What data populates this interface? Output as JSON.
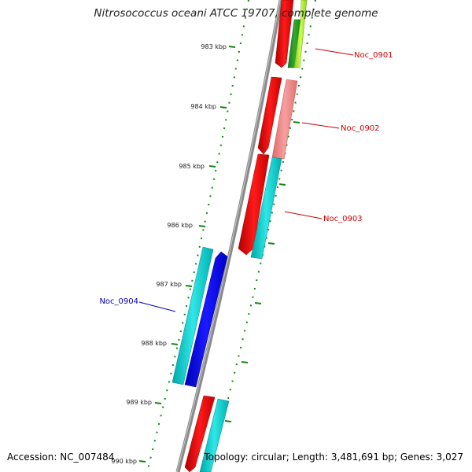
{
  "title": "Nitrosococcus oceani ATCC 19707, complete genome",
  "footer": {
    "accession": "Accession: NC_007484",
    "stats": "Topology: circular; Length: 3,481,691 bp; Genes: 3,027"
  },
  "ticks": [
    {
      "label": "983 kbp",
      "kbp": 983
    },
    {
      "label": "984 kbp",
      "kbp": 984
    },
    {
      "label": "985 kbp",
      "kbp": 985
    },
    {
      "label": "986 kbp",
      "kbp": 986
    },
    {
      "label": "987 kbp",
      "kbp": 987
    },
    {
      "label": "988 kbp",
      "kbp": 988
    },
    {
      "label": "989 kbp",
      "kbp": 989
    },
    {
      "label": "990 kbp",
      "kbp": 990
    }
  ],
  "gene_labels": [
    {
      "text": "Noc_0901",
      "color": "#cc0000"
    },
    {
      "text": "Noc_0902",
      "color": "#cc0000"
    },
    {
      "text": "Noc_0903",
      "color": "#cc0000"
    },
    {
      "text": "Noc_0904",
      "color": "#0000bb"
    }
  ],
  "colors": {
    "backbone": "#8a8a8a",
    "ruler": "#118811",
    "forward_gene": "#ff0000",
    "forward_gene_light": "#f08080",
    "reverse_gene": "#0000ff",
    "cyan_feature": "#11cccc",
    "green_feature": "#229922",
    "lime_feature": "#aaee22"
  }
}
